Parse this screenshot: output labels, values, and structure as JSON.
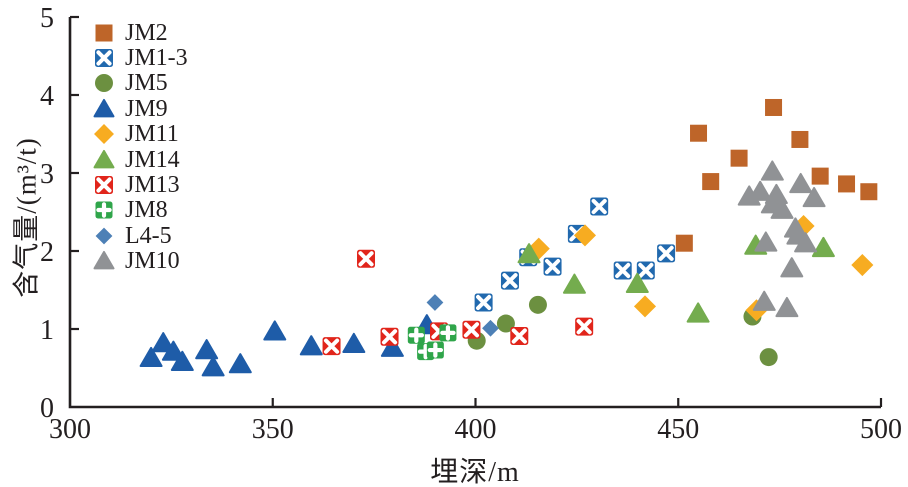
{
  "chart_data": {
    "type": "scatter",
    "title": "",
    "xlabel": "埋深/m",
    "ylabel": "含气量/(m³/t)",
    "xlim": [
      300,
      500
    ],
    "ylim": [
      0,
      5
    ],
    "x_ticks": [
      "300",
      "350",
      "400",
      "450",
      "500"
    ],
    "y_ticks": [
      "0",
      "1",
      "2",
      "3",
      "4",
      "5"
    ],
    "grid": false,
    "legend_position": "top-left-inside",
    "axis_color": "#231f20",
    "series": [
      {
        "name": "JM2",
        "marker": "square",
        "color": "#be6529",
        "size": 17,
        "points": [
          [
            451.5,
            2.1
          ],
          [
            455,
            3.51
          ],
          [
            458,
            2.89
          ],
          [
            465,
            3.19
          ],
          [
            473.5,
            3.84
          ],
          [
            480,
            3.43
          ],
          [
            485,
            2.96
          ],
          [
            491.5,
            2.86
          ],
          [
            497,
            2.76
          ]
        ]
      },
      {
        "name": "JM1-3",
        "marker": "square-x",
        "color": "#2169ae",
        "size": 18,
        "points": [
          [
            402,
            1.34
          ],
          [
            408.5,
            1.62
          ],
          [
            413,
            1.92
          ],
          [
            419,
            1.8
          ],
          [
            425,
            2.22
          ],
          [
            430.5,
            2.57
          ],
          [
            436.3,
            1.75
          ],
          [
            442,
            1.75
          ],
          [
            447,
            1.97
          ]
        ]
      },
      {
        "name": "JM5",
        "marker": "circle",
        "color": "#6c9040",
        "size": 18,
        "points": [
          [
            400.3,
            0.85
          ],
          [
            407.5,
            1.07
          ],
          [
            415.4,
            1.31
          ],
          [
            468.3,
            1.16
          ],
          [
            472.3,
            0.64
          ]
        ]
      },
      {
        "name": "JM9",
        "marker": "triangle",
        "color": "#1e5ca8",
        "size": 21,
        "points": [
          [
            320,
            0.63
          ],
          [
            323,
            0.82
          ],
          [
            325.5,
            0.71
          ],
          [
            327.7,
            0.58
          ],
          [
            333.7,
            0.73
          ],
          [
            335.3,
            0.51
          ],
          [
            342,
            0.55
          ],
          [
            350.5,
            0.97
          ],
          [
            359.5,
            0.78
          ],
          [
            370,
            0.81
          ],
          [
            379.5,
            0.76
          ],
          [
            388,
            1.05
          ]
        ]
      },
      {
        "name": "JM11",
        "marker": "diamond",
        "color": "#f7ac21",
        "size": 21,
        "points": [
          [
            415.6,
            2.03
          ],
          [
            427,
            2.2
          ],
          [
            441.8,
            1.29
          ],
          [
            469.3,
            1.24
          ],
          [
            480.9,
            2.32
          ],
          [
            495.4,
            1.82
          ]
        ]
      },
      {
        "name": "JM14",
        "marker": "triangle",
        "color": "#74ac4e",
        "size": 21,
        "points": [
          [
            413.2,
            1.96
          ],
          [
            424.4,
            1.57
          ],
          [
            439.9,
            1.58
          ],
          [
            454.9,
            1.2
          ],
          [
            469.1,
            2.07
          ],
          [
            485.8,
            2.04
          ]
        ]
      },
      {
        "name": "JM13",
        "marker": "square-x",
        "color": "#e1251b",
        "size": 18,
        "points": [
          [
            364.5,
            0.78
          ],
          [
            373,
            1.9
          ],
          [
            378.8,
            0.9
          ],
          [
            391,
            0.97
          ],
          [
            399,
            0.99
          ],
          [
            410.8,
            0.91
          ],
          [
            426.8,
            1.03
          ]
        ]
      },
      {
        "name": "JM8",
        "marker": "square-plus",
        "color": "#2fa54a",
        "size": 17,
        "points": [
          [
            385.4,
            0.92
          ],
          [
            387.7,
            0.71
          ],
          [
            390.1,
            0.73
          ],
          [
            393.2,
            0.95
          ]
        ]
      },
      {
        "name": "L4-5",
        "marker": "diamond",
        "color": "#4d80b6",
        "size": 16,
        "points": [
          [
            390,
            1.34
          ],
          [
            403.7,
            1.01
          ]
        ]
      },
      {
        "name": "JM10",
        "marker": "triangle",
        "color": "#909295",
        "size": 21,
        "points": [
          [
            473.2,
            3.02
          ],
          [
            470.2,
            2.76
          ],
          [
            467.5,
            2.7
          ],
          [
            474.2,
            2.72
          ],
          [
            473.2,
            2.6
          ],
          [
            475.6,
            2.53
          ],
          [
            480.2,
            2.86
          ],
          [
            483.5,
            2.68
          ],
          [
            478.9,
            2.29
          ],
          [
            479.5,
            2.2
          ],
          [
            481.4,
            2.1
          ],
          [
            471.6,
            2.11
          ],
          [
            478,
            1.78
          ],
          [
            471.2,
            1.35
          ],
          [
            476.8,
            1.27
          ]
        ]
      }
    ]
  }
}
